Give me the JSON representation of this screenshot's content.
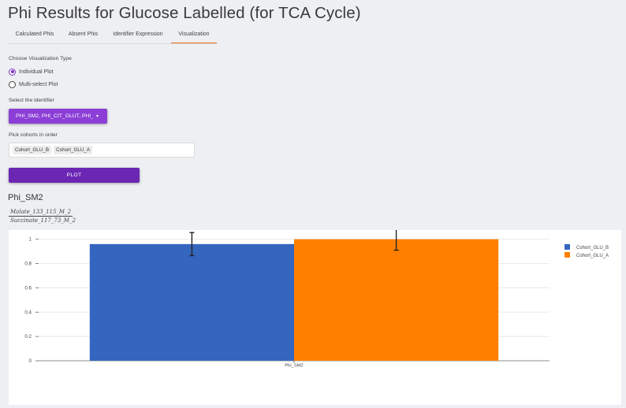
{
  "page": {
    "title": "Phi Results for Glucose Labelled (for TCA Cycle)"
  },
  "tabs": [
    {
      "label": "Calculated Phis",
      "active": false
    },
    {
      "label": "Absent Phis",
      "active": false
    },
    {
      "label": "Identifier Expression",
      "active": false
    },
    {
      "label": "Visualization",
      "active": true
    }
  ],
  "accent_color": "#f36f21",
  "viz_type": {
    "label": "Choose Visualization Type",
    "options": [
      {
        "label": "Individual Plot",
        "checked": true
      },
      {
        "label": "Multi-select Plot",
        "checked": false
      }
    ]
  },
  "identifier": {
    "label": "Select the identifier",
    "value": "PHI_SM2, PHI_CIT_GLUT, PHI_",
    "caret": "▾"
  },
  "cohorts": {
    "label": "Pick cohorts in order",
    "chips": [
      "Cohort_GLU_B",
      "Cohort_GLU_A"
    ]
  },
  "plot_button": {
    "label": "PLOT"
  },
  "result": {
    "phi_name": "Phi_SM2",
    "formula_numerator": "Malate_133_115_M_2",
    "formula_denominator": "Succinate_117_73_M_2"
  },
  "chart_data": {
    "type": "bar",
    "categories": [
      "Phi_SM2"
    ],
    "series": [
      {
        "name": "Cohort_GLU_B",
        "values": [
          0.96
        ],
        "error": [
          0.095
        ],
        "color": "#3566bf"
      },
      {
        "name": "Cohort_GLU_A",
        "values": [
          1.0
        ],
        "error": [
          0.09
        ],
        "color": "#ff8000"
      }
    ],
    "ylim": [
      0,
      1.05
    ],
    "yticks": [
      0,
      0.2,
      0.4,
      0.6,
      0.8,
      1
    ],
    "ytick_labels": [
      "0",
      "0.2",
      "0.4",
      "0.6",
      "0.8",
      "1"
    ],
    "grid": true,
    "legend": "top-right"
  }
}
